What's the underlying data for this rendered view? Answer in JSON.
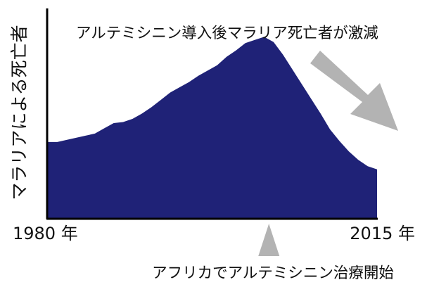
{
  "chart_data": {
    "type": "area",
    "title": "",
    "xlabel": "",
    "ylabel": "マラリアによる死亡者",
    "x_tick_labels": [
      "1980 年",
      "2015 年"
    ],
    "x_range": [
      1980,
      2015
    ],
    "ylim": [
      0,
      100
    ],
    "grid": false,
    "legend": "none",
    "annotations": {
      "decline": "アルテミシニン導入後マラリア死亡者が激減",
      "start": "アフリカでアルテミシニン治療開始"
    },
    "annotation_start_year": 2003.5,
    "series": [
      {
        "x": [
          1980,
          1981,
          1982,
          1983,
          1984,
          1985,
          1986,
          1987,
          1988,
          1989,
          1990,
          1991,
          1992,
          1993,
          1994,
          1995,
          1996,
          1997,
          1998,
          1999,
          2000,
          2001,
          2002,
          2003,
          2004,
          2005,
          2006,
          2007,
          2008,
          2009,
          2010,
          2011,
          2012,
          2013,
          2014,
          2015
        ],
        "values": [
          36.5,
          36.5,
          37.5,
          38.5,
          39.5,
          40.5,
          43.0,
          45.5,
          46.0,
          47.5,
          50.0,
          53.0,
          56.5,
          60.0,
          62.5,
          65.0,
          68.0,
          70.5,
          73.0,
          77.0,
          80.0,
          83.5,
          85.0,
          86.5,
          84.0,
          78.0,
          71.0,
          64.0,
          57.0,
          50.0,
          42.5,
          37.0,
          32.0,
          28.0,
          25.0,
          23.5
        ]
      }
    ],
    "colors": {
      "area": "#1f2277",
      "axis": "#000000",
      "arrow": "#b3b3b3",
      "text": "#111111"
    }
  }
}
